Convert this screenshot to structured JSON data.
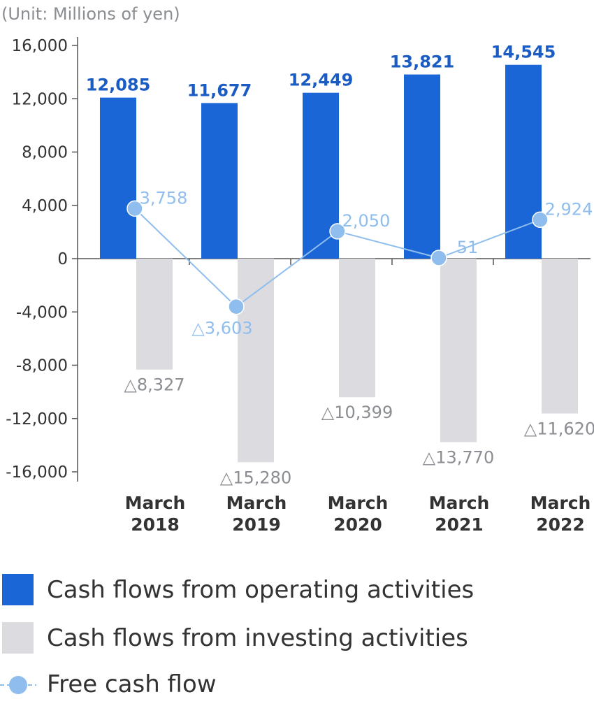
{
  "colors": {
    "operating": "#1a66d6",
    "investing": "#dcdce0",
    "free_cf": "#8fbdee",
    "operating_label": "#1a5cc4",
    "investing_label": "#8a8d92",
    "free_cf_label": "#8fbdee",
    "axis": "#555555",
    "axis_text": "#333333"
  },
  "chart_data": {
    "type": "bar",
    "unit_label": "(Unit: Millions of yen)",
    "categories": [
      [
        "March",
        "2018"
      ],
      [
        "March",
        "2019"
      ],
      [
        "March",
        "2020"
      ],
      [
        "March",
        "2021"
      ],
      [
        "March",
        "2022"
      ]
    ],
    "ylim": [
      -16000,
      16000
    ],
    "yticks": [
      16000,
      12000,
      8000,
      4000,
      0,
      -4000,
      -8000,
      -12000,
      -16000
    ],
    "ytick_labels": [
      "16,000",
      "12,000",
      "8,000",
      "4,000",
      "0",
      "-4,000",
      "-8,000",
      "-12,000",
      "-16,000"
    ],
    "series": [
      {
        "name": "Cash flows from operating activities",
        "kind": "bar",
        "values": [
          12085,
          11677,
          12449,
          13821,
          14545
        ],
        "labels": [
          "12,085",
          "11,677",
          "12,449",
          "13,821",
          "14,545"
        ]
      },
      {
        "name": "Cash flows from investing activities",
        "kind": "bar",
        "values": [
          -8327,
          -15280,
          -10399,
          -13770,
          -11620
        ],
        "labels": [
          "△8,327",
          "△15,280",
          "△10,399",
          "△13,770",
          "△11,620"
        ]
      },
      {
        "name": "Free cash flow",
        "kind": "line",
        "values": [
          3758,
          -3603,
          2050,
          51,
          2924
        ],
        "labels": [
          "3,758",
          "△3,603",
          "2,050",
          "51",
          "2,924"
        ]
      }
    ]
  },
  "legend": {
    "items": [
      {
        "label": "Cash flows from operating activities"
      },
      {
        "label": "Cash flows from investing activities"
      },
      {
        "label": "Free cash flow"
      }
    ]
  }
}
